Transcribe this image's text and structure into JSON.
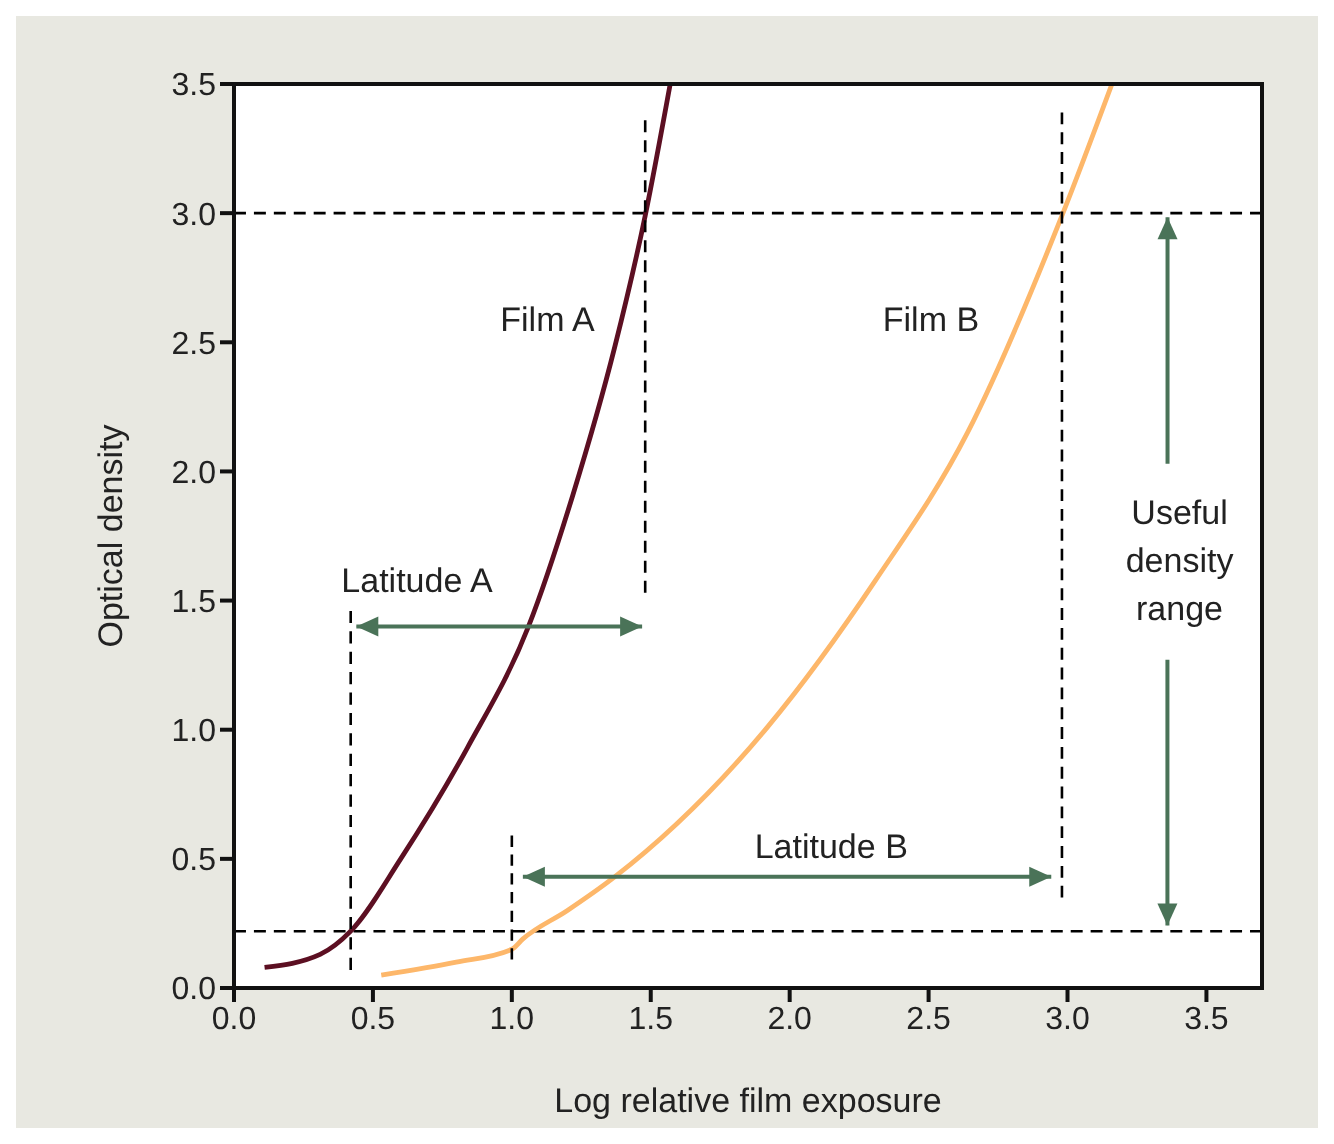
{
  "chart_data": {
    "type": "line",
    "xlabel": "Log relative film exposure",
    "ylabel": "Optical density",
    "xlim": [
      0,
      3.7
    ],
    "ylim": [
      0,
      3.5
    ],
    "xticks": [
      {
        "value": 0,
        "label": "0.0"
      },
      {
        "value": 0.5,
        "label": "0.5"
      },
      {
        "value": 1,
        "label": "1.0"
      },
      {
        "value": 1.5,
        "label": "1.5"
      },
      {
        "value": 2,
        "label": "2.0"
      },
      {
        "value": 2.5,
        "label": "2.5"
      },
      {
        "value": 3,
        "label": "3.0"
      },
      {
        "value": 3.5,
        "label": "3.5"
      }
    ],
    "yticks": [
      {
        "value": 0,
        "label": "0.0"
      },
      {
        "value": 0.5,
        "label": "0.5"
      },
      {
        "value": 1,
        "label": "1.0"
      },
      {
        "value": 1.5,
        "label": "1.5"
      },
      {
        "value": 2,
        "label": "2.0"
      },
      {
        "value": 2.5,
        "label": "2.5"
      },
      {
        "value": 3,
        "label": "3.0"
      },
      {
        "value": 3.5,
        "label": "3.5"
      }
    ],
    "marker": "none",
    "line_style": "solid",
    "series": [
      {
        "color": "#5c0f22",
        "x": [
          0.11,
          0.31,
          0.42,
          0.6,
          0.84,
          1.06,
          1.22,
          1.37,
          1.48,
          1.57
        ],
        "values": [
          0.08,
          0.13,
          0.22,
          0.5,
          0.93,
          1.4,
          1.91,
          2.48,
          2.99,
          3.5
        ]
      },
      {
        "color": "#fdb76a",
        "x": [
          0.53,
          0.8,
          1.0,
          1.04,
          1.2,
          1.37,
          1.92,
          2.31,
          2.64,
          2.98,
          3.16
        ],
        "values": [
          0.05,
          0.1,
          0.15,
          0.19,
          0.3,
          0.43,
          1.01,
          1.58,
          2.15,
          2.99,
          3.5
        ]
      },
      {
        "color": "#000000",
        "line_style": "dashed",
        "x": [
          0.42,
          0.42
        ],
        "values": [
          0.07,
          1.46
        ]
      },
      {
        "color": "#000000",
        "line_style": "dashed",
        "x": [
          1.48,
          1.48
        ],
        "values": [
          1.53,
          3.36
        ]
      },
      {
        "color": "#000000",
        "line_style": "dashed",
        "x": [
          1.0,
          1.0
        ],
        "values": [
          0.11,
          0.59
        ]
      },
      {
        "color": "#000000",
        "line_style": "dashed",
        "x": [
          2.98,
          2.98
        ],
        "values": [
          0.35,
          3.39
        ]
      }
    ],
    "ref_lines": [
      {
        "axis": "y",
        "value": 3.0,
        "color": "#000000",
        "line_style": "dashed"
      },
      {
        "axis": "y",
        "value": 0.22,
        "color": "#000000",
        "line_style": "dashed"
      }
    ],
    "annotations": [
      "Film A",
      "Film B",
      "Latitude A",
      "Latitude B",
      {
        "text": "Useful density range",
        "x": 3.36,
        "y": 3.0
      }
    ]
  }
}
